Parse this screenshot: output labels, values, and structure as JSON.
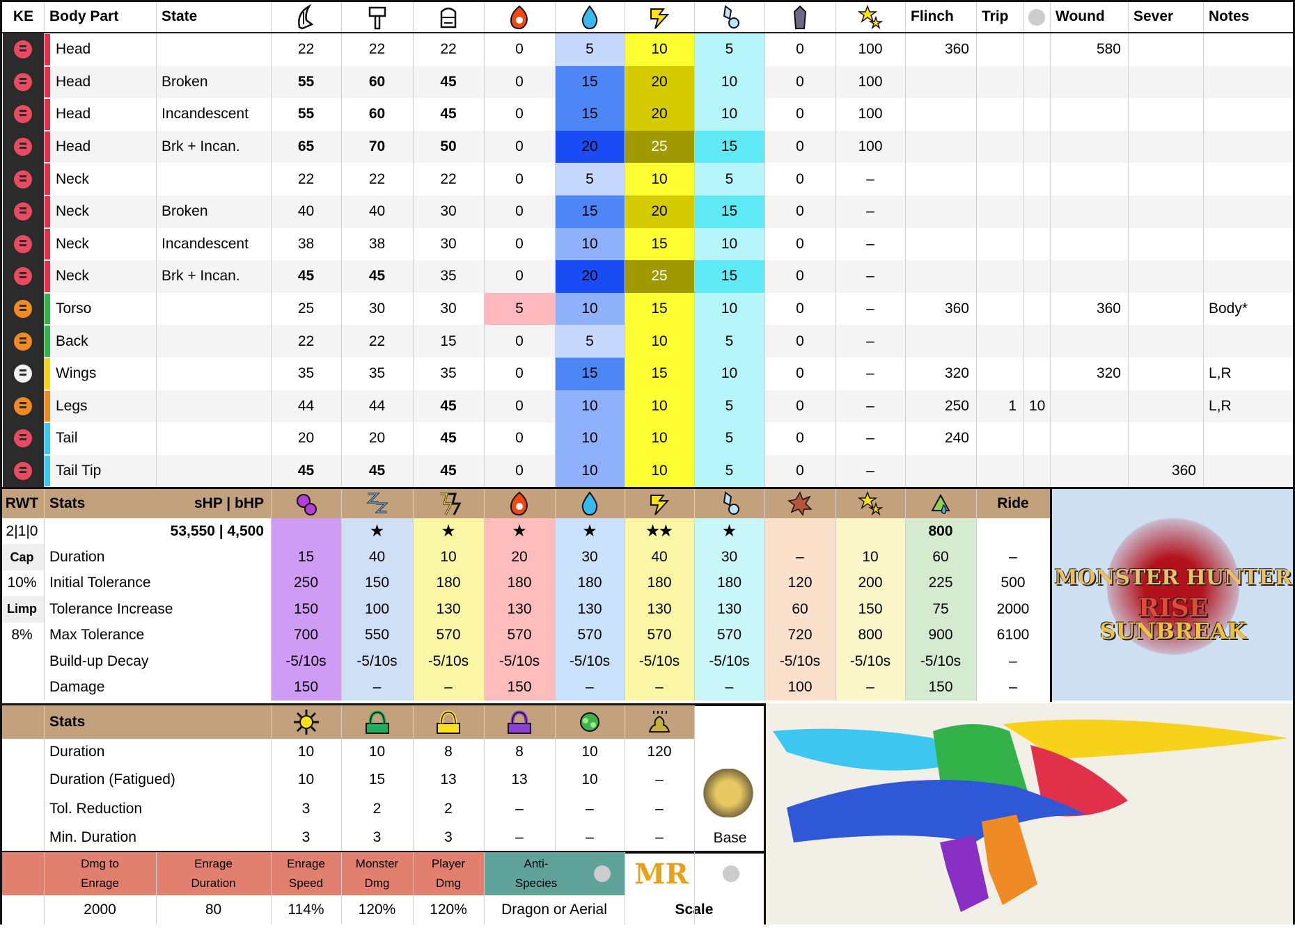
{
  "hitzones": {
    "headers": {
      "ke": "KE",
      "part": "Body Part",
      "state": "State",
      "flinch": "Flinch",
      "trip": "Trip",
      "wound": "Wound",
      "sever": "Sever",
      "notes": "Notes"
    },
    "icons": [
      "sever-icon",
      "blunt-icon",
      "shot-icon",
      "fire-icon",
      "water-icon",
      "thunder-icon",
      "ice-icon",
      "dragon-icon",
      "stun-icon"
    ],
    "rows": [
      {
        "ke": "#e84a5f",
        "bar": "#e0304a",
        "part": "Head",
        "state": "",
        "v": [
          "22",
          "22",
          "22",
          "0",
          "5",
          "10",
          "5",
          "0",
          "100"
        ],
        "flinch": "360",
        "trip": "",
        "trip2": "",
        "wound": "580",
        "sever": "",
        "notes": ""
      },
      {
        "ke": "#e84a5f",
        "bar": "#e0304a",
        "part": "Head",
        "state": "Broken",
        "v": [
          "55",
          "60",
          "45",
          "0",
          "15",
          "20",
          "10",
          "0",
          "100"
        ],
        "flinch": "",
        "trip": "",
        "trip2": "",
        "wound": "",
        "sever": "",
        "notes": ""
      },
      {
        "ke": "#e84a5f",
        "bar": "#e0304a",
        "part": "Head",
        "state": "Incandescent",
        "v": [
          "55",
          "60",
          "45",
          "0",
          "15",
          "20",
          "10",
          "0",
          "100"
        ],
        "flinch": "",
        "trip": "",
        "trip2": "",
        "wound": "",
        "sever": "",
        "notes": ""
      },
      {
        "ke": "#e84a5f",
        "bar": "#e0304a",
        "part": "Head",
        "state": "Brk + Incan.",
        "v": [
          "65",
          "70",
          "50",
          "0",
          "20",
          "25",
          "15",
          "0",
          "100"
        ],
        "flinch": "",
        "trip": "",
        "trip2": "",
        "wound": "",
        "sever": "",
        "notes": ""
      },
      {
        "ke": "#e84a5f",
        "bar": "#e0304a",
        "part": "Neck",
        "state": "",
        "v": [
          "22",
          "22",
          "22",
          "0",
          "5",
          "10",
          "5",
          "0",
          "–"
        ],
        "flinch": "",
        "trip": "",
        "trip2": "",
        "wound": "",
        "sever": "",
        "notes": ""
      },
      {
        "ke": "#e84a5f",
        "bar": "#e0304a",
        "part": "Neck",
        "state": "Broken",
        "v": [
          "40",
          "40",
          "30",
          "0",
          "15",
          "20",
          "15",
          "0",
          "–"
        ],
        "flinch": "",
        "trip": "",
        "trip2": "",
        "wound": "",
        "sever": "",
        "notes": ""
      },
      {
        "ke": "#e84a5f",
        "bar": "#e0304a",
        "part": "Neck",
        "state": "Incandescent",
        "v": [
          "38",
          "38",
          "30",
          "0",
          "10",
          "15",
          "10",
          "0",
          "–"
        ],
        "flinch": "",
        "trip": "",
        "trip2": "",
        "wound": "",
        "sever": "",
        "notes": ""
      },
      {
        "ke": "#e84a5f",
        "bar": "#e0304a",
        "part": "Neck",
        "state": "Brk + Incan.",
        "v": [
          "45",
          "45",
          "35",
          "0",
          "20",
          "25",
          "15",
          "0",
          "–"
        ],
        "flinch": "",
        "trip": "",
        "trip2": "",
        "wound": "",
        "sever": "",
        "notes": ""
      },
      {
        "ke": "#f08a24",
        "bar": "#33b24a",
        "part": "Torso",
        "state": "",
        "v": [
          "25",
          "30",
          "30",
          "5",
          "10",
          "15",
          "10",
          "0",
          "–"
        ],
        "flinch": "360",
        "trip": "",
        "trip2": "",
        "wound": "360",
        "sever": "",
        "notes": "Body*"
      },
      {
        "ke": "#f08a24",
        "bar": "#33b24a",
        "part": "Back",
        "state": "",
        "v": [
          "22",
          "22",
          "15",
          "0",
          "5",
          "10",
          "5",
          "0",
          "–"
        ],
        "flinch": "",
        "trip": "",
        "trip2": "",
        "wound": "",
        "sever": "",
        "notes": ""
      },
      {
        "ke": "#f2f2f2",
        "bar": "#f6d31a",
        "part": "Wings",
        "state": "",
        "v": [
          "35",
          "35",
          "35",
          "0",
          "15",
          "15",
          "10",
          "0",
          "–"
        ],
        "flinch": "320",
        "trip": "",
        "trip2": "",
        "wound": "320",
        "sever": "",
        "notes": "L,R"
      },
      {
        "ke": "#f08a24",
        "bar": "#f08a24",
        "part": "Legs",
        "state": "",
        "v": [
          "44",
          "44",
          "45",
          "0",
          "10",
          "10",
          "5",
          "0",
          "–"
        ],
        "flinch": "250",
        "trip": "1",
        "trip2": "10",
        "wound": "",
        "sever": "",
        "notes": "L,R"
      },
      {
        "ke": "#e84a5f",
        "bar": "#3cc6f0",
        "part": "Tail",
        "state": "",
        "v": [
          "20",
          "20",
          "45",
          "0",
          "10",
          "10",
          "5",
          "0",
          "–"
        ],
        "flinch": "240",
        "trip": "",
        "trip2": "",
        "wound": "",
        "sever": "",
        "notes": ""
      },
      {
        "ke": "#e84a5f",
        "bar": "#3cc6f0",
        "part": "Tail Tip",
        "state": "",
        "v": [
          "45",
          "45",
          "45",
          "0",
          "10",
          "10",
          "5",
          "0",
          "–"
        ],
        "flinch": "",
        "trip": "",
        "trip2": "",
        "wound": "",
        "sever": "360",
        "notes": ""
      }
    ]
  },
  "status": {
    "headers": {
      "rwt": "RWT",
      "stats": "Stats",
      "hp": "sHP   |   bHP",
      "ride": "Ride"
    },
    "icons": [
      "poison-icon",
      "sleep-icon",
      "paralysis-icon",
      "fireblight-icon",
      "waterblight-icon",
      "thunderblight-icon",
      "iceblight-icon",
      "blast-icon",
      "stun-icon",
      "exhaust-icon"
    ],
    "left": [
      "2|1|0",
      "Cap",
      "10%",
      "Limp",
      "8%",
      ""
    ],
    "hp_value": "53,550 | 4,500",
    "stars": [
      "",
      "★",
      "★",
      "★",
      "★",
      "★★",
      "★",
      "",
      "",
      "800",
      ""
    ],
    "rows": [
      {
        "label": "Duration",
        "v": [
          "15",
          "40",
          "10",
          "20",
          "30",
          "40",
          "30",
          "–",
          "10",
          "60",
          "–"
        ]
      },
      {
        "label": "Initial Tolerance",
        "v": [
          "250",
          "150",
          "180",
          "180",
          "180",
          "180",
          "180",
          "120",
          "200",
          "225",
          "500"
        ]
      },
      {
        "label": "Tolerance Increase",
        "v": [
          "150",
          "100",
          "130",
          "130",
          "130",
          "130",
          "130",
          "60",
          "150",
          "75",
          "2000"
        ]
      },
      {
        "label": "Max Tolerance",
        "v": [
          "700",
          "550",
          "570",
          "570",
          "570",
          "570",
          "570",
          "720",
          "800",
          "900",
          "6100"
        ]
      },
      {
        "label": "Build-up Decay",
        "v": [
          "-5/10s",
          "-5/10s",
          "-5/10s",
          "-5/10s",
          "-5/10s",
          "-5/10s",
          "-5/10s",
          "-5/10s",
          "-5/10s",
          "-5/10s",
          "–"
        ]
      },
      {
        "label": "Damage",
        "v": [
          "150",
          "–",
          "–",
          "150",
          "–",
          "–",
          "–",
          "100",
          "–",
          "150",
          "–"
        ]
      }
    ]
  },
  "logo": {
    "line1": "MONSTER HUNTER",
    "line2": "RISE",
    "line3": "SUNBREAK"
  },
  "traps": {
    "header": "Stats",
    "icons": [
      "flash-icon",
      "shock-trap-icon",
      "pitfall-trap-icon",
      "sonic-icon",
      "tranq-icon",
      "dung-icon"
    ],
    "rows": [
      {
        "label": "Duration",
        "v": [
          "10",
          "10",
          "8",
          "8",
          "10",
          "120"
        ]
      },
      {
        "label": "Duration (Fatigued)",
        "v": [
          "10",
          "15",
          "13",
          "13",
          "10",
          "–"
        ]
      },
      {
        "label": "Tol. Reduction",
        "v": [
          "3",
          "2",
          "2",
          "–",
          "–",
          "–"
        ]
      },
      {
        "label": "Min. Duration",
        "v": [
          "3",
          "3",
          "3",
          "–",
          "–",
          "–"
        ]
      }
    ],
    "base_label": "Base"
  },
  "enrage": {
    "headers": [
      "Dmg to\nEnrage",
      "Enrage\nDuration",
      "Enrage\nSpeed",
      "Monster\nDmg",
      "Player\nDmg"
    ],
    "values": [
      "2000",
      "80",
      "114%",
      "120%",
      "120%"
    ],
    "anti_species_label": "Anti-\nSpecies",
    "anti_species_value": "Dragon or Aerial",
    "rank": "MR",
    "scale_label": "Scale"
  },
  "colors": {
    "water": [
      "#c7d8ff",
      "#4f86f7",
      "#1a4cf5",
      "#8fb0fb"
    ],
    "thunder": [
      "#ffff33",
      "#d4cc00",
      "#a09a00"
    ],
    "ice": [
      "#b6f6fb",
      "#5fe9f4"
    ],
    "fire_hit": "#ffb8bd"
  }
}
